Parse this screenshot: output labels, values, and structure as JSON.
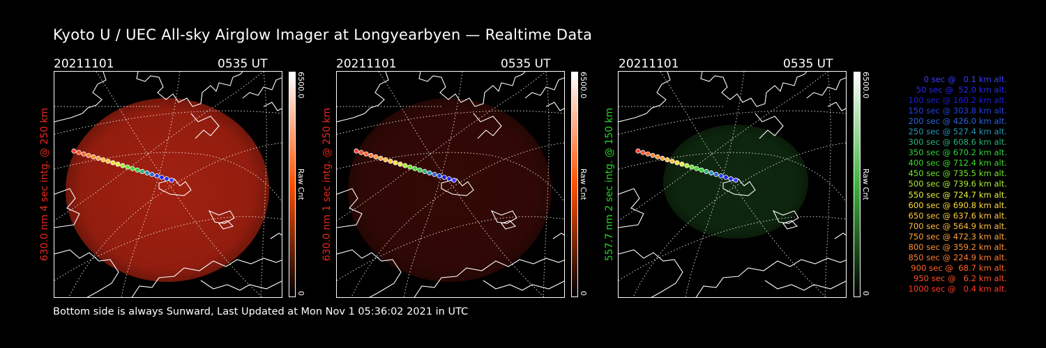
{
  "title": "Kyoto U / UEC All-sky Airglow Imager at Longyearbyen — Realtime Data",
  "panels": [
    {
      "date": "20211101",
      "time": "0535 UT",
      "ylabel": "630.0 nm 4 sec intg. @ 250 km",
      "label_color": "#e8281e",
      "colorbar_max": "6500.0",
      "colorbar_label": "Raw Cnt",
      "colorbar_min": "0",
      "colorbar_color": "#ff5000",
      "glow_color": "#b42412",
      "glow_opacity": 0.9
    },
    {
      "date": "20211101",
      "time": "0535 UT",
      "ylabel": "630.0 nm 1 sec intg. @ 250 km",
      "label_color": "#e8281e",
      "colorbar_max": "6500.0",
      "colorbar_label": "Raw Cnt",
      "colorbar_min": "0",
      "colorbar_color": "#ff5000",
      "glow_color": "#3a0a06",
      "glow_opacity": 0.9
    },
    {
      "date": "20211101",
      "time": "0535 UT",
      "ylabel": "557.7 nm 2 sec intg. @ 150 km",
      "label_color": "#28d228",
      "colorbar_max": "6500.0",
      "colorbar_label": "Raw Cnt",
      "colorbar_min": "0",
      "colorbar_color": "#3cb43c",
      "glow_color": "#0f2a0f",
      "glow_opacity": 0.95
    }
  ],
  "footer": "Bottom side is always Sunward, Last Updated at Mon Nov  1 05:36:02 2021 in UTC",
  "legend": [
    {
      "text": "0 sec @   0.1 km alt.",
      "color": "#3c3cff"
    },
    {
      "text": "50 sec @  52.0 km alt.",
      "color": "#2828f0"
    },
    {
      "text": "100 sec @ 160.2 km alt.",
      "color": "#1e1ee6"
    },
    {
      "text": "150 sec @ 303.8 km alt.",
      "color": "#2040e8"
    },
    {
      "text": "200 sec @ 426.0 km alt.",
      "color": "#2864dc"
    },
    {
      "text": "250 sec @ 527.4 km alt.",
      "color": "#2896b4"
    },
    {
      "text": "300 sec @ 608.6 km alt.",
      "color": "#28b478"
    },
    {
      "text": "350 sec @ 670.2 km alt.",
      "color": "#32d23c"
    },
    {
      "text": "400 sec @ 712.4 km alt.",
      "color": "#3cdc28"
    },
    {
      "text": "450 sec @ 735.5 km alt.",
      "color": "#6ee628"
    },
    {
      "text": "500 sec @ 739.6 km alt.",
      "color": "#aaf032"
    },
    {
      "text": "550 sec @ 724.7 km alt.",
      "color": "#e6f03c"
    },
    {
      "text": "600 sec @ 690.8 km alt.",
      "color": "#ffdc3c"
    },
    {
      "text": "650 sec @ 637.6 km alt.",
      "color": "#ffc83c"
    },
    {
      "text": "700 sec @ 564.9 km alt.",
      "color": "#ffbe3c"
    },
    {
      "text": "750 sec @ 472.3 km alt.",
      "color": "#ffa53c"
    },
    {
      "text": "800 sec @ 359.2 km alt.",
      "color": "#ff9132"
    },
    {
      "text": "850 sec @ 224.9 km alt.",
      "color": "#ff7d32"
    },
    {
      "text": "900 sec @  68.7 km alt.",
      "color": "#ff6428"
    },
    {
      "text": "950 sec @   6.2 km alt.",
      "color": "#ff5028"
    },
    {
      "text": "1000 sec @   0.4 km alt.",
      "color": "#ff3c28"
    }
  ]
}
